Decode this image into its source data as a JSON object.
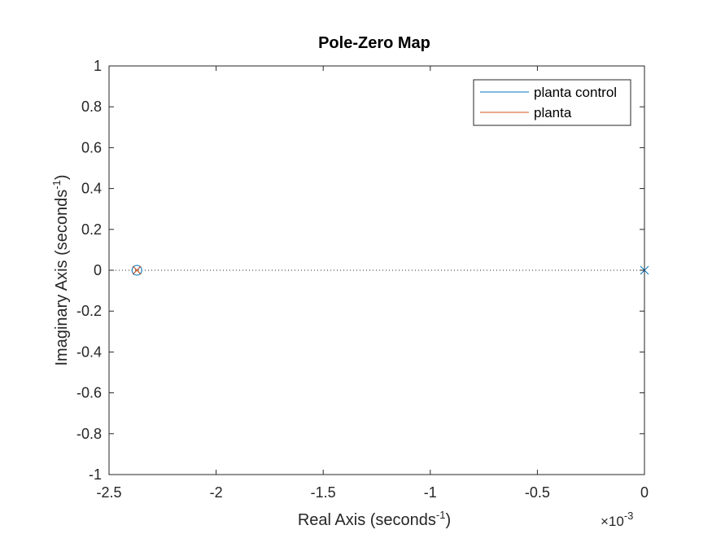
{
  "chart_data": {
    "type": "scatter",
    "title": "Pole-Zero Map",
    "xlabel": {
      "base": "Real Axis (seconds",
      "sup": "-1",
      "close": ")"
    },
    "ylabel": {
      "base": "Imaginary Axis (seconds",
      "sup": "-1",
      "close": ")"
    },
    "x_exponent": {
      "prefix": "×10",
      "sup": "-3"
    },
    "xlim": [
      -2.5,
      0
    ],
    "ylim": [
      -1,
      1
    ],
    "x_ticks": [
      -2.5,
      -2,
      -1.5,
      -1,
      -0.5,
      0
    ],
    "x_tick_labels": [
      "-2.5",
      "-2",
      "-1.5",
      "-1",
      "-0.5",
      "0"
    ],
    "y_ticks": [
      1,
      0.8,
      0.6,
      0.4,
      0.2,
      0,
      -0.2,
      -0.4,
      -0.6,
      -0.8,
      -1
    ],
    "y_tick_labels": [
      "1",
      "0.8",
      "0.6",
      "0.4",
      "0.2",
      "0",
      "-0.2",
      "-0.4",
      "-0.6",
      "-0.8",
      "-1"
    ],
    "grid": false,
    "legend_position": "top-right",
    "series": [
      {
        "name": "planta control",
        "color": "#0072BD",
        "poles": [
          [
            0,
            0
          ],
          [
            -2.37,
            0
          ]
        ],
        "zeros": [
          [
            -2.37,
            0
          ]
        ]
      },
      {
        "name": "planta",
        "color": "#D95319",
        "poles": [
          [
            -2.37,
            0
          ]
        ],
        "zeros": []
      }
    ]
  }
}
